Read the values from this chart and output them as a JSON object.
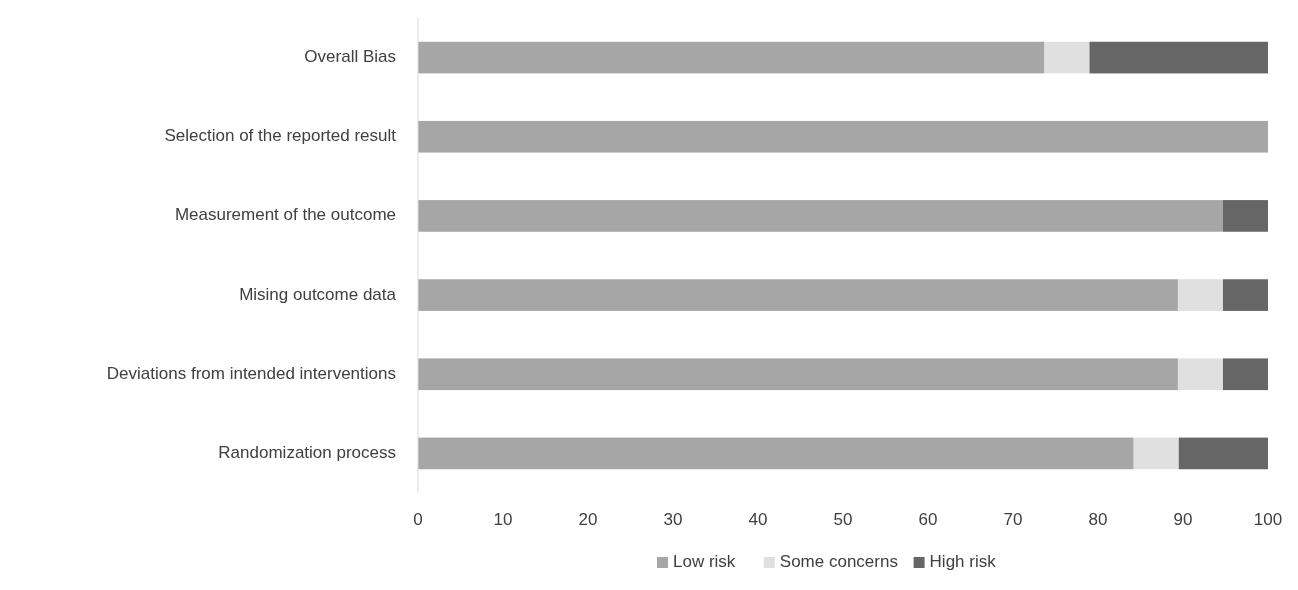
{
  "chart_data": {
    "type": "bar",
    "orientation": "horizontal",
    "stacked": true,
    "categories": [
      "Overall Bias",
      "Selection of the reported result",
      "Measurement of the outcome",
      "Mising outcome data",
      "Deviations from intended interventions",
      "Randomization process"
    ],
    "series": [
      {
        "name": "Low risk",
        "color": "#a6a6a6",
        "values": [
          73.7,
          100,
          94.7,
          89.4,
          89.4,
          84.2
        ]
      },
      {
        "name": "Some concerns",
        "color": "#e0e0e0",
        "values": [
          5.3,
          0,
          0,
          5.3,
          5.3,
          5.3
        ]
      },
      {
        "name": "High risk",
        "color": "#666666",
        "values": [
          21,
          0,
          5.3,
          5.3,
          5.3,
          10.5
        ]
      }
    ],
    "xlim": [
      0,
      100
    ],
    "xticks": [
      0,
      10,
      20,
      30,
      40,
      50,
      60,
      70,
      80,
      90,
      100
    ],
    "grid": false,
    "legend": "bottom"
  }
}
